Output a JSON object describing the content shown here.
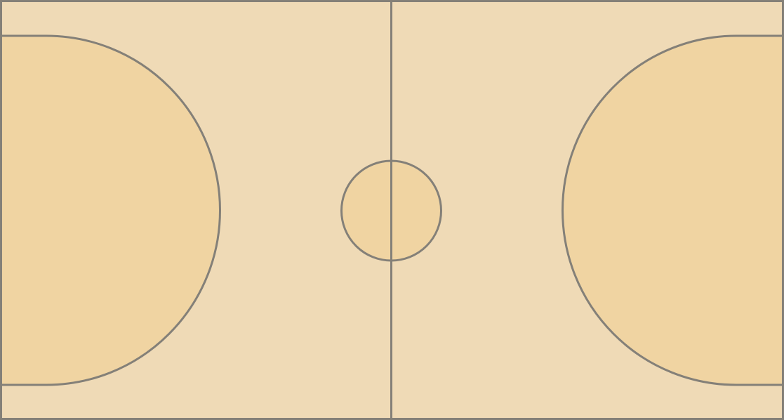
{
  "court": {
    "floor_color": "#efdab6",
    "zone_color": "#f0d4a2",
    "line_color": "#848078"
  }
}
